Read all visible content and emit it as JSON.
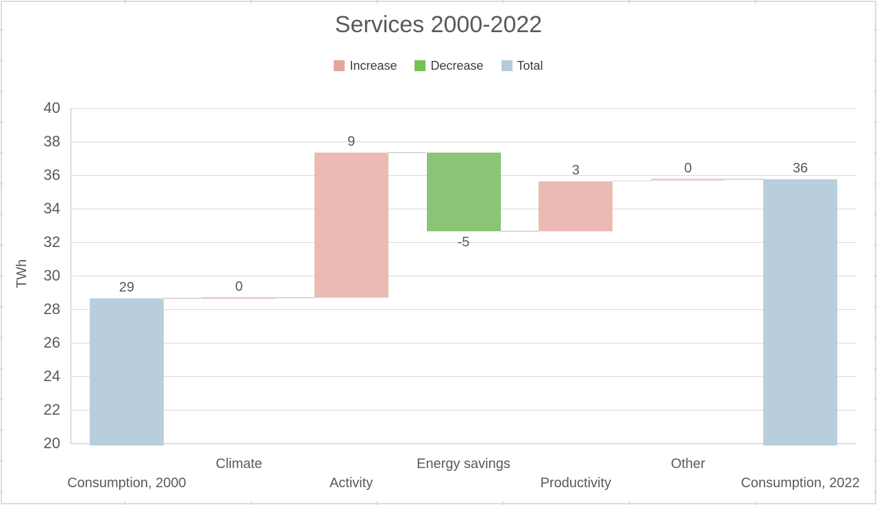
{
  "title": "Services 2000-2022",
  "legend": [
    {
      "label": "Increase",
      "color": "#e7a49f"
    },
    {
      "label": "Decrease",
      "color": "#74c158"
    },
    {
      "label": "Total",
      "color": "#b5cbd9"
    }
  ],
  "chart_data": {
    "type": "bar",
    "subtype": "waterfall",
    "title": "Services 2000-2022",
    "ylabel": "TWh",
    "ylim": [
      20,
      40
    ],
    "ytick_step": 2,
    "grid": "horizontal",
    "legend_position": "top-center",
    "categories": [
      "Consumption, 2000",
      "Climate",
      "Activity",
      "Energy savings",
      "Productivity",
      "Other",
      "Consumption, 2022"
    ],
    "bars": [
      {
        "label": "Consumption, 2000",
        "kind": "total",
        "start": 20,
        "end": 28.65,
        "value_label": "29"
      },
      {
        "label": "Climate",
        "kind": "zero",
        "start": 28.65,
        "end": 28.7,
        "value_label": "0"
      },
      {
        "label": "Activity",
        "kind": "increase",
        "start": 28.7,
        "end": 37.35,
        "value_label": "9"
      },
      {
        "label": "Energy savings",
        "kind": "decrease",
        "start": 37.35,
        "end": 32.65,
        "value_label": "-5"
      },
      {
        "label": "Productivity",
        "kind": "increase",
        "start": 32.65,
        "end": 35.65,
        "value_label": "3"
      },
      {
        "label": "Other",
        "kind": "zero",
        "start": 35.65,
        "end": 35.75,
        "value_label": "0"
      },
      {
        "label": "Consumption, 2022",
        "kind": "total",
        "start": 20,
        "end": 35.75,
        "value_label": "36"
      }
    ],
    "colors": {
      "increase": "#ecbab5",
      "decrease": "#8ac577",
      "total": "#b9cedc",
      "zero": "#eecfcb",
      "connector": "#d9d9d9",
      "gridline": "#d9d9d9",
      "axis": "#c2c2c2",
      "text": "#595959"
    }
  }
}
